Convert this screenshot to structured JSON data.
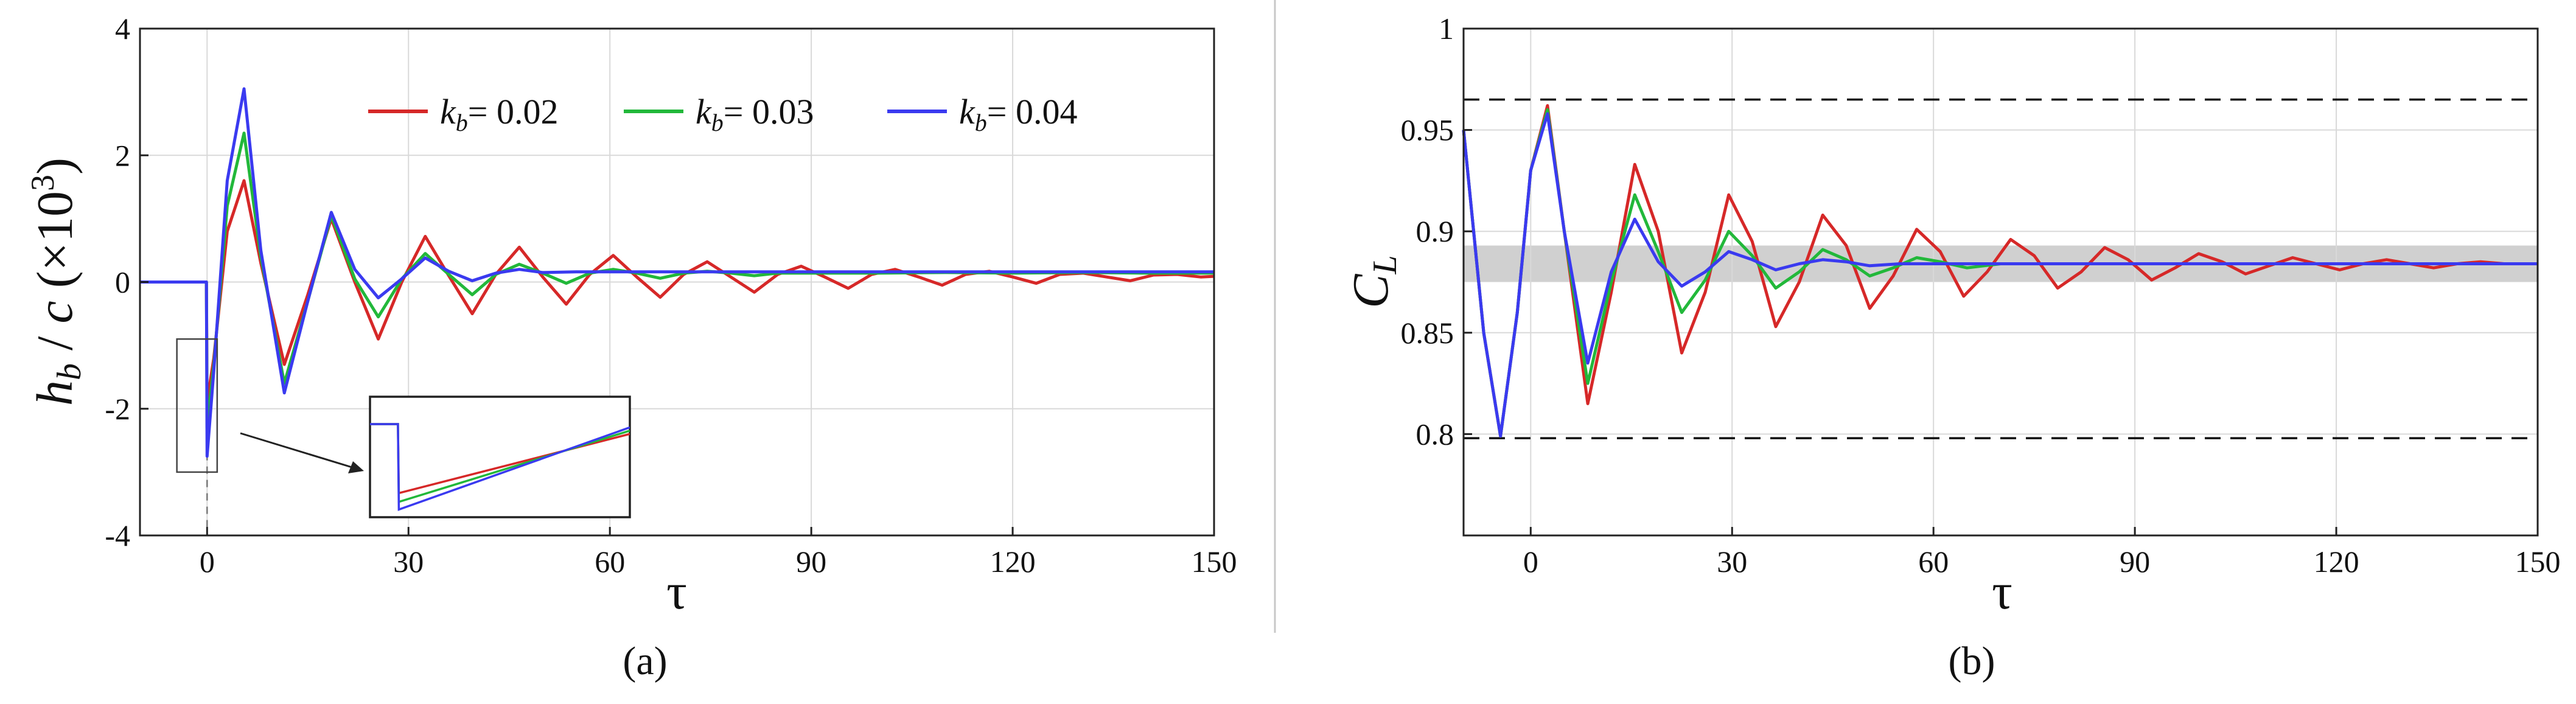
{
  "chart_data": [
    {
      "type": "line",
      "panel_label": "(a)",
      "xlabel": "τ",
      "ylabel": "h_b / c (×10^3)",
      "xlim": [
        -10,
        150
      ],
      "ylim": [
        -4,
        4
      ],
      "xticks": [
        0,
        30,
        60,
        90,
        120,
        150
      ],
      "yticks": [
        -4,
        -2,
        0,
        2,
        4
      ],
      "grid": true,
      "legend": {
        "placement": "top-right",
        "entries": [
          {
            "symbol": "k",
            "sub": "b",
            "text": "= 0.02",
            "color": "#d62828"
          },
          {
            "symbol": "k",
            "sub": "b",
            "text": "= 0.03",
            "color": "#22b83a"
          },
          {
            "symbol": "k",
            "sub": "b",
            "text": "= 0.04",
            "color": "#3a3af0"
          }
        ]
      },
      "inset": {
        "zoom_region_x": [
          -4.5,
          1.5
        ],
        "zoom_region_y": [
          -3.0,
          -0.9
        ],
        "guide_line_at_x": 0
      },
      "series": [
        {
          "name": "k_b = 0.02",
          "color": "#d62828",
          "x": [
            -10,
            -0.1,
            0,
            1,
            3,
            5.5,
            8,
            11.5,
            15,
            18.5,
            22,
            25.5,
            29,
            32.5,
            36,
            39.5,
            43,
            46.5,
            50,
            53.5,
            57,
            60.5,
            64,
            67.5,
            71,
            74.5,
            78,
            81.5,
            85,
            88.5,
            92,
            95.5,
            99,
            102.5,
            106,
            109.5,
            113,
            116.5,
            120,
            123.5,
            127,
            130.5,
            134,
            137.5,
            141,
            144.5,
            148,
            150
          ],
          "y": [
            0,
            0,
            -1.9,
            -1.2,
            0.8,
            1.6,
            0.3,
            -1.3,
            -0.2,
            1.0,
            0.0,
            -0.9,
            0.0,
            0.72,
            0.1,
            -0.5,
            0.12,
            0.55,
            0.08,
            -0.35,
            0.12,
            0.42,
            0.08,
            -0.24,
            0.12,
            0.32,
            0.08,
            -0.16,
            0.12,
            0.25,
            0.08,
            -0.1,
            0.12,
            0.2,
            0.08,
            -0.05,
            0.12,
            0.17,
            0.08,
            -0.02,
            0.12,
            0.14,
            0.08,
            0.02,
            0.11,
            0.12,
            0.08,
            0.09
          ]
        },
        {
          "name": "k_b = 0.03",
          "color": "#22b83a",
          "x": [
            -10,
            -0.1,
            0,
            1,
            3,
            5.5,
            8,
            11.5,
            15,
            18.5,
            22,
            25.5,
            29,
            32.5,
            36,
            39.5,
            43,
            46.5,
            50,
            53.5,
            57,
            60.5,
            64,
            67.5,
            71,
            74.5,
            78,
            81.5,
            85,
            90,
            100,
            110,
            120,
            130,
            140,
            150
          ],
          "y": [
            0,
            0,
            -2.3,
            -1.3,
            1.2,
            2.35,
            0.4,
            -1.6,
            -0.3,
            1.05,
            0.05,
            -0.55,
            0.05,
            0.45,
            0.12,
            -0.2,
            0.12,
            0.28,
            0.14,
            -0.02,
            0.14,
            0.2,
            0.14,
            0.06,
            0.14,
            0.17,
            0.14,
            0.1,
            0.14,
            0.14,
            0.14,
            0.15,
            0.14,
            0.15,
            0.14,
            0.14
          ]
        },
        {
          "name": "k_b = 0.04",
          "color": "#3a3af0",
          "x": [
            -10,
            -0.1,
            0,
            1,
            3,
            5.5,
            8,
            11.5,
            15,
            18.5,
            22,
            25.5,
            29,
            32.5,
            36,
            39.5,
            43,
            46.5,
            50,
            55,
            60,
            70,
            80,
            90,
            100,
            110,
            120,
            130,
            140,
            150
          ],
          "y": [
            0,
            0,
            -2.75,
            -1.4,
            1.6,
            3.05,
            0.5,
            -1.75,
            -0.3,
            1.1,
            0.2,
            -0.25,
            0.05,
            0.38,
            0.17,
            0.02,
            0.14,
            0.2,
            0.15,
            0.16,
            0.16,
            0.16,
            0.16,
            0.16,
            0.16,
            0.16,
            0.16,
            0.16,
            0.16,
            0.16
          ]
        }
      ]
    },
    {
      "type": "line",
      "panel_label": "(b)",
      "xlabel": "τ",
      "ylabel": "C_L",
      "xlim": [
        -10,
        150
      ],
      "ylim": [
        0.75,
        1.0
      ],
      "xticks": [
        0,
        30,
        60,
        90,
        120,
        150
      ],
      "yticks": [
        0.8,
        0.85,
        0.9,
        0.95,
        1
      ],
      "ytick_labels": [
        "0.8",
        "0.85",
        "0.9",
        "0.95",
        "1"
      ],
      "grid": true,
      "reference_lines_y": [
        0.965,
        0.798
      ],
      "shaded_band_y": [
        0.875,
        0.893
      ],
      "series": [
        {
          "name": "k_b = 0.02",
          "color": "#d62828",
          "x": [
            -10,
            -7,
            -4.5,
            -2,
            0,
            2.5,
            5,
            8.5,
            12,
            15.5,
            19,
            22.5,
            26,
            29.5,
            33,
            36.5,
            40,
            43.5,
            47,
            50.5,
            54,
            57.5,
            61,
            64.5,
            68,
            71.5,
            75,
            78.5,
            82,
            85.5,
            89,
            92.5,
            96,
            99.5,
            103,
            106.5,
            110,
            113.5,
            117,
            120.5,
            124,
            127.5,
            131,
            134.5,
            138,
            141.5,
            145,
            150
          ],
          "y": [
            0.95,
            0.85,
            0.799,
            0.86,
            0.93,
            0.962,
            0.9,
            0.815,
            0.87,
            0.933,
            0.9,
            0.84,
            0.87,
            0.918,
            0.895,
            0.853,
            0.875,
            0.908,
            0.893,
            0.862,
            0.878,
            0.901,
            0.89,
            0.868,
            0.88,
            0.896,
            0.888,
            0.872,
            0.88,
            0.892,
            0.886,
            0.876,
            0.882,
            0.889,
            0.885,
            0.879,
            0.883,
            0.887,
            0.884,
            0.881,
            0.884,
            0.886,
            0.884,
            0.882,
            0.884,
            0.885,
            0.884,
            0.884
          ]
        },
        {
          "name": "k_b = 0.03",
          "color": "#22b83a",
          "x": [
            -10,
            -7,
            -4.5,
            -2,
            0,
            2.5,
            5,
            8.5,
            12,
            15.5,
            19,
            22.5,
            26,
            29.5,
            33,
            36.5,
            40,
            43.5,
            47,
            50.5,
            54,
            57.5,
            61,
            65,
            70,
            80,
            90,
            100,
            110,
            120,
            130,
            140,
            150
          ],
          "y": [
            0.95,
            0.85,
            0.799,
            0.86,
            0.93,
            0.96,
            0.9,
            0.825,
            0.875,
            0.918,
            0.89,
            0.86,
            0.876,
            0.9,
            0.888,
            0.872,
            0.88,
            0.891,
            0.886,
            0.878,
            0.882,
            0.887,
            0.885,
            0.882,
            0.884,
            0.884,
            0.884,
            0.884,
            0.884,
            0.884,
            0.884,
            0.884,
            0.884
          ]
        },
        {
          "name": "k_b = 0.04",
          "color": "#3a3af0",
          "x": [
            -10,
            -7,
            -4.5,
            -2,
            0,
            2.5,
            5,
            8.5,
            12,
            15.5,
            19,
            22.5,
            26,
            29.5,
            33,
            36.5,
            40,
            43.5,
            47,
            50.5,
            55,
            60,
            70,
            80,
            90,
            100,
            110,
            120,
            130,
            140,
            150
          ],
          "y": [
            0.95,
            0.85,
            0.799,
            0.86,
            0.93,
            0.958,
            0.9,
            0.835,
            0.88,
            0.906,
            0.885,
            0.873,
            0.88,
            0.89,
            0.886,
            0.881,
            0.884,
            0.886,
            0.885,
            0.883,
            0.884,
            0.884,
            0.884,
            0.884,
            0.884,
            0.884,
            0.884,
            0.884,
            0.884,
            0.884,
            0.884
          ]
        }
      ]
    }
  ]
}
